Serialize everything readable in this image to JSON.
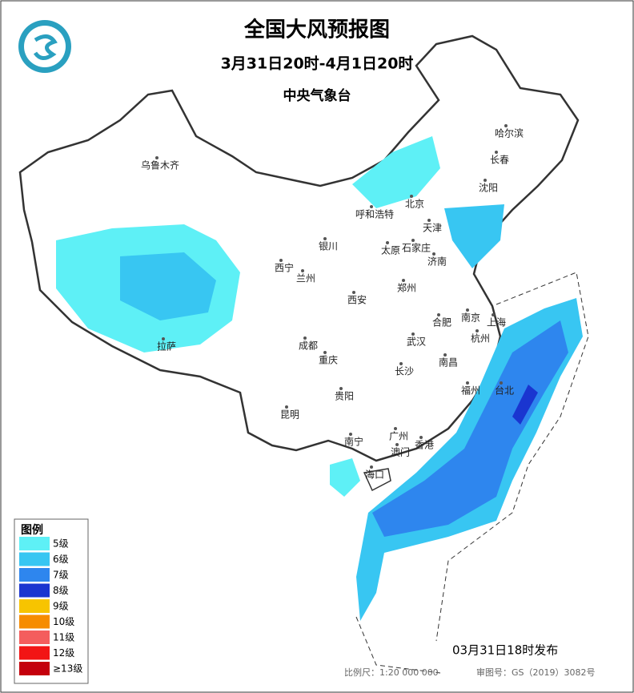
{
  "header": {
    "title": "全国大风预报图",
    "period": "3月31日20时-4月1日20时",
    "agency": "中央气象台"
  },
  "cities": [
    "乌鲁木齐",
    "哈尔滨",
    "长春",
    "沈阳",
    "北京",
    "天津",
    "呼和浩特",
    "银川",
    "太原",
    "石家庄",
    "济南",
    "西宁",
    "兰州",
    "西安",
    "郑州",
    "拉萨",
    "成都",
    "重庆",
    "武汉",
    "合肥",
    "南京",
    "上海",
    "杭州",
    "南昌",
    "长沙",
    "贵阳",
    "昆明",
    "南宁",
    "广州",
    "香港",
    "澳门",
    "海口",
    "福州",
    "台北"
  ],
  "legend": {
    "title": "图例",
    "items": [
      {
        "label": "5级",
        "color": "#5ef0f6"
      },
      {
        "label": "6级",
        "color": "#38c6f2"
      },
      {
        "label": "7级",
        "color": "#2e86ee"
      },
      {
        "label": "8级",
        "color": "#1a35d0"
      },
      {
        "label": "9级",
        "color": "#f7c400"
      },
      {
        "label": "10级",
        "color": "#f68c00"
      },
      {
        "label": "11级",
        "color": "#f45d5d"
      },
      {
        "label": "12级",
        "color": "#f21515"
      },
      {
        "label": "≥13级",
        "color": "#c4000c"
      }
    ]
  },
  "footer": {
    "issued": "03月31日18时发布",
    "scale": "比例尺：1:20 000 000",
    "map_number": "审图号：GS（2019）3082号"
  }
}
